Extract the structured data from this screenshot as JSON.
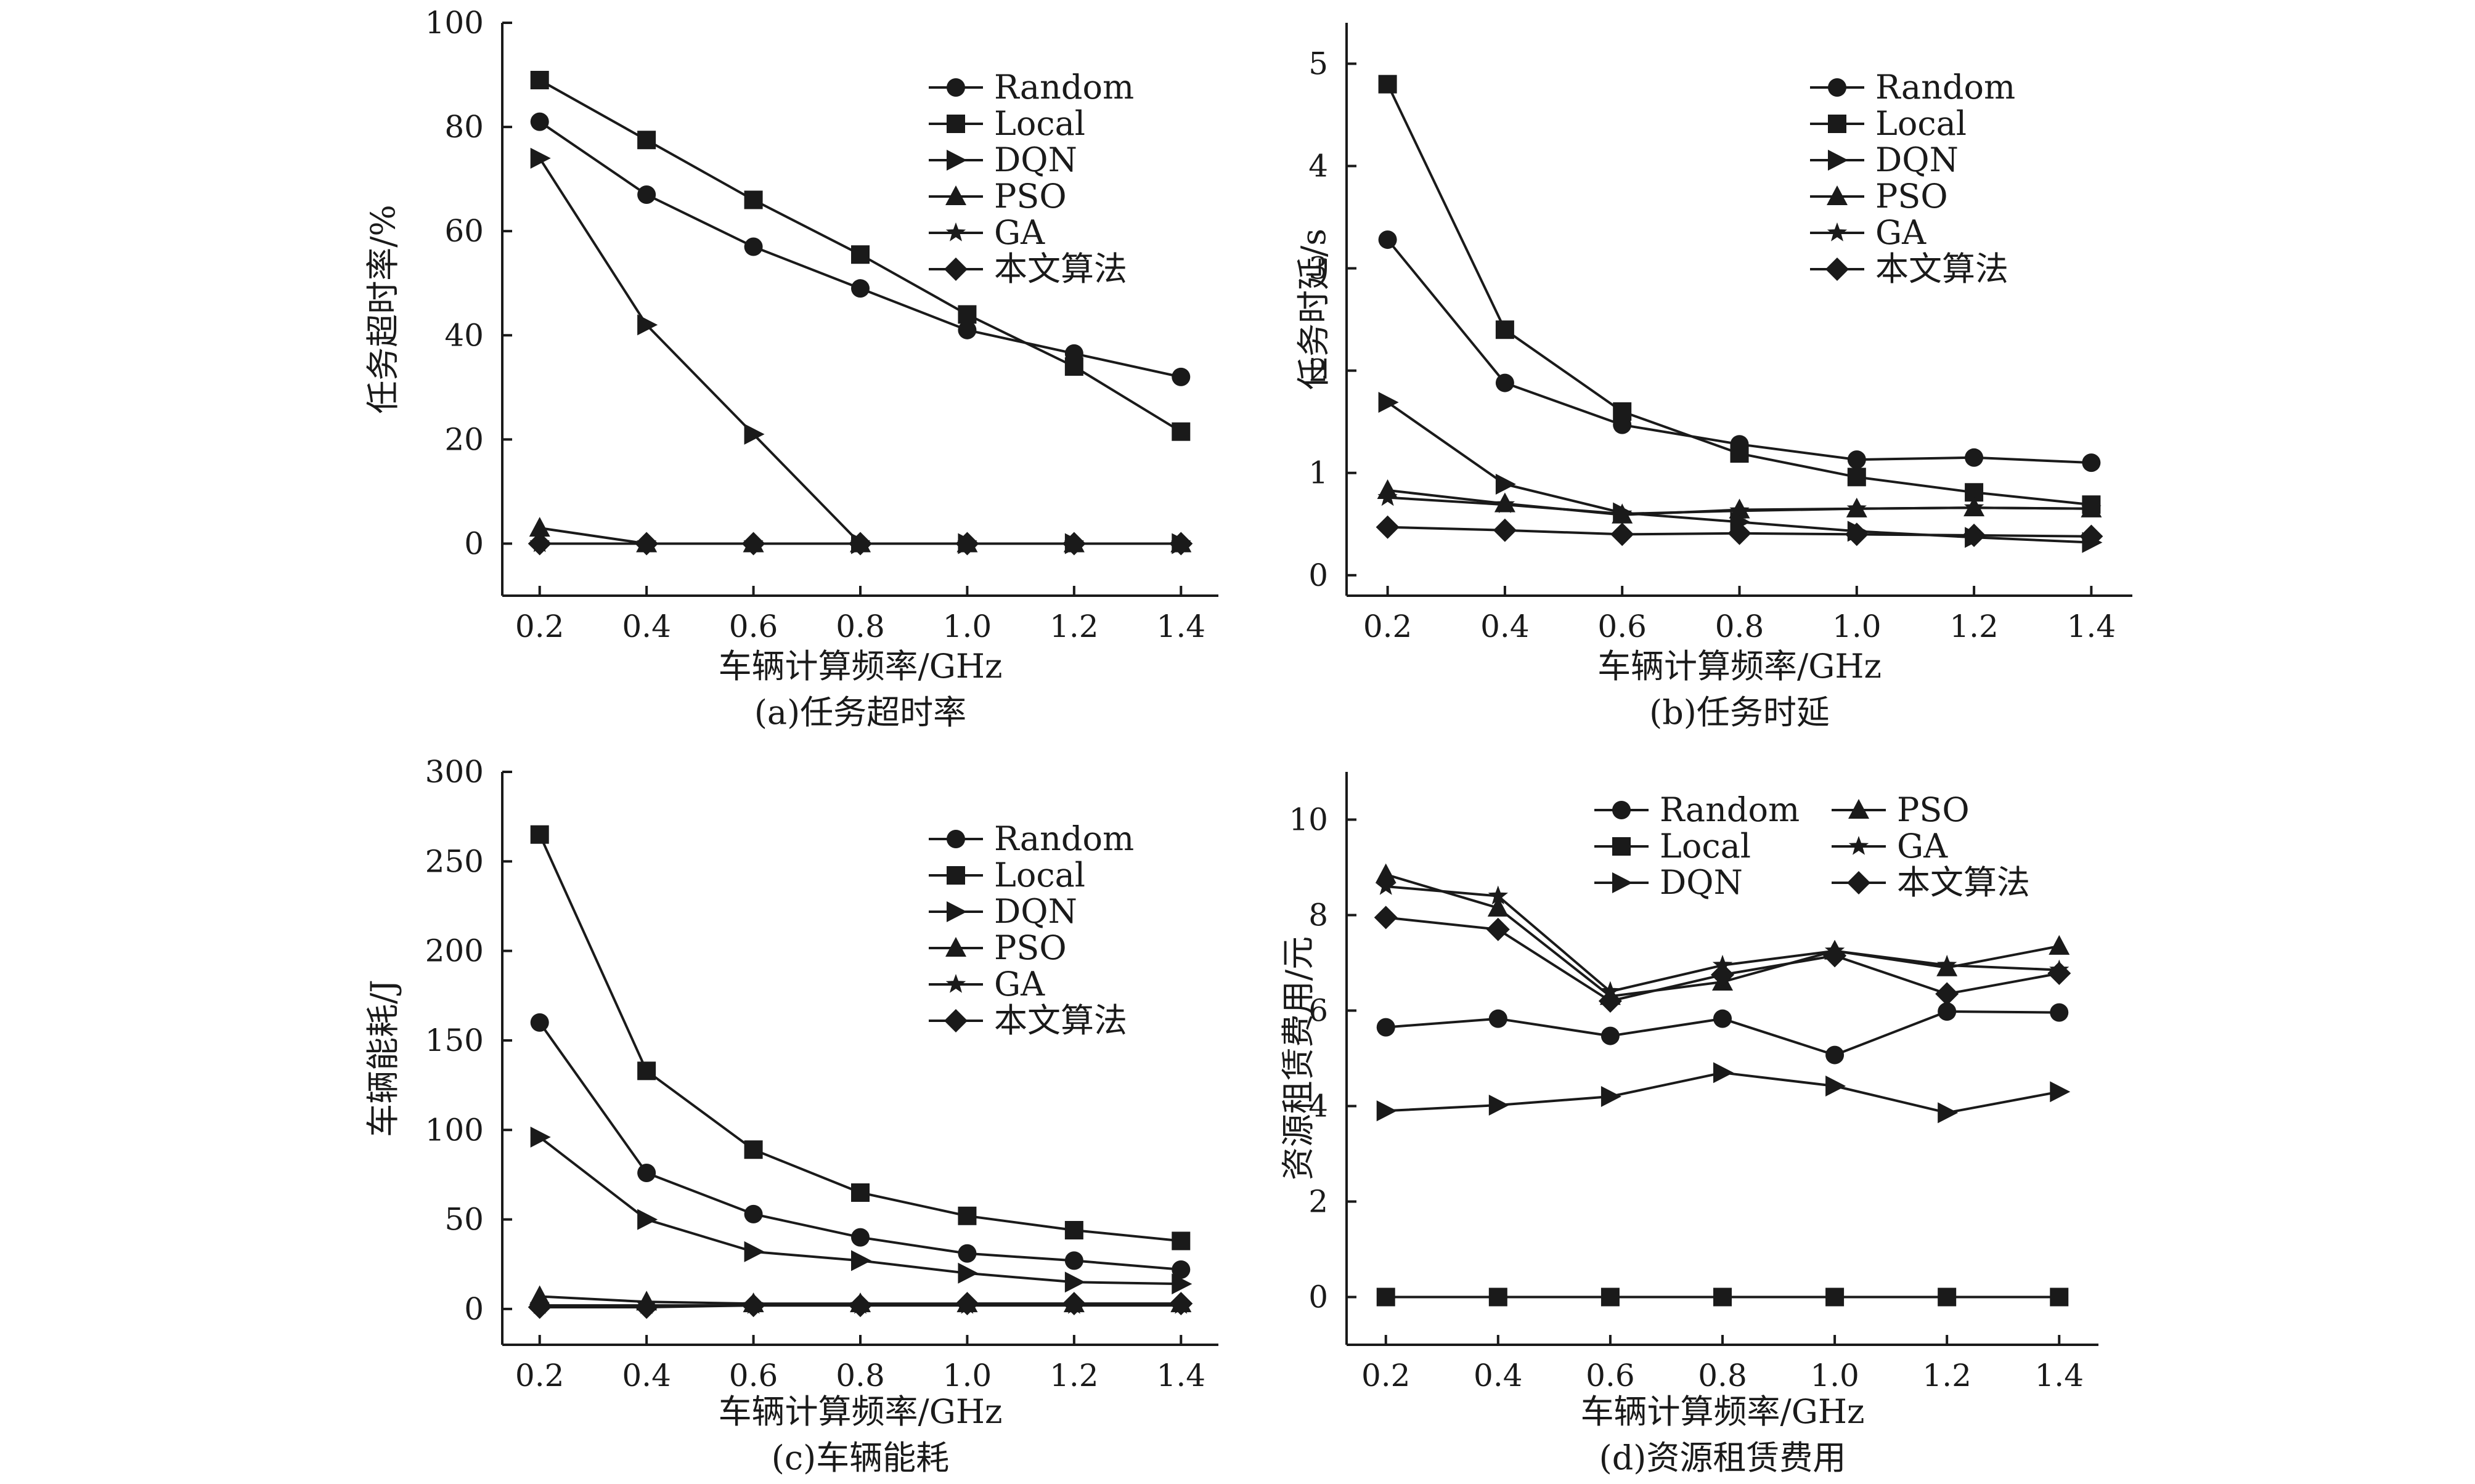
{
  "chart_data": [
    {
      "type": "line",
      "caption": "(a)任务超时率",
      "xlabel": "车辆计算频率/GHz",
      "ylabel": "任务超时率/%",
      "categories": [
        "0.2",
        "0.4",
        "0.6",
        "0.8",
        "1.0",
        "1.2",
        "1.4"
      ],
      "x": [
        0.2,
        0.4,
        0.6,
        0.8,
        1.0,
        1.2,
        1.4
      ],
      "xlim": [
        0.13,
        1.47
      ],
      "ylim": [
        -10,
        100
      ],
      "yticks": [
        "0",
        "20",
        "40",
        "60",
        "80",
        "100"
      ],
      "ytick_values": [
        0,
        20,
        40,
        60,
        80,
        100
      ],
      "legend": "top-right",
      "legend_columns": 1,
      "grid": false,
      "series": [
        {
          "name": "Random",
          "marker": "circle",
          "values": [
            81,
            67,
            57,
            49,
            41,
            36.5,
            32
          ]
        },
        {
          "name": "Local",
          "marker": "square",
          "values": [
            89,
            77.5,
            66,
            55.5,
            44,
            34,
            21.5
          ]
        },
        {
          "name": "DQN",
          "marker": "triangle-right",
          "values": [
            74,
            42,
            21,
            0,
            0,
            0,
            0
          ]
        },
        {
          "name": "PSO",
          "marker": "triangle-up",
          "values": [
            3,
            0,
            0,
            0,
            0,
            0,
            0
          ]
        },
        {
          "name": "GA",
          "marker": "star",
          "values": [
            0,
            0,
            0,
            0,
            0,
            0,
            0
          ]
        },
        {
          "name": "本文算法",
          "marker": "diamond",
          "values": [
            0,
            0,
            0,
            0,
            0,
            0,
            0
          ]
        }
      ]
    },
    {
      "type": "line",
      "caption": "(b)任务时延",
      "xlabel": "车辆计算频率/GHz",
      "ylabel": "任务时延/s",
      "categories": [
        "0.2",
        "0.4",
        "0.6",
        "0.8",
        "1.0",
        "1.2",
        "1.4"
      ],
      "x": [
        0.2,
        0.4,
        0.6,
        0.8,
        1.0,
        1.2,
        1.4
      ],
      "xlim": [
        0.13,
        1.47
      ],
      "ylim": [
        -0.2,
        5.4
      ],
      "yticks": [
        "0",
        "1",
        "2",
        "3",
        "4",
        "5"
      ],
      "ytick_values": [
        0,
        1,
        2,
        3,
        4,
        5
      ],
      "legend": "top-right",
      "legend_columns": 1,
      "grid": false,
      "series": [
        {
          "name": "Random",
          "marker": "circle",
          "values": [
            3.28,
            1.88,
            1.47,
            1.28,
            1.13,
            1.15,
            1.1
          ]
        },
        {
          "name": "Local",
          "marker": "square",
          "values": [
            4.8,
            2.4,
            1.6,
            1.19,
            0.96,
            0.81,
            0.69
          ]
        },
        {
          "name": "DQN",
          "marker": "triangle-right",
          "values": [
            1.69,
            0.89,
            0.61,
            0.52,
            0.43,
            0.37,
            0.32
          ]
        },
        {
          "name": "PSO",
          "marker": "triangle-up",
          "values": [
            0.83,
            0.7,
            0.59,
            0.64,
            0.65,
            0.66,
            0.65
          ]
        },
        {
          "name": "GA",
          "marker": "star",
          "values": [
            0.76,
            0.69,
            0.6,
            0.63,
            0.65,
            0.66,
            0.65
          ]
        },
        {
          "name": "本文算法",
          "marker": "diamond",
          "values": [
            0.47,
            0.44,
            0.4,
            0.41,
            0.4,
            0.39,
            0.38
          ]
        }
      ]
    },
    {
      "type": "line",
      "caption": "(c)车辆能耗",
      "xlabel": "车辆计算频率/GHz",
      "ylabel": "车辆能耗/J",
      "categories": [
        "0.2",
        "0.4",
        "0.6",
        "0.8",
        "1.0",
        "1.2",
        "1.4"
      ],
      "x": [
        0.2,
        0.4,
        0.6,
        0.8,
        1.0,
        1.2,
        1.4
      ],
      "xlim": [
        0.13,
        1.47
      ],
      "ylim": [
        -20,
        300
      ],
      "yticks": [
        "0",
        "50",
        "100",
        "150",
        "200",
        "250",
        "300"
      ],
      "ytick_values": [
        0,
        50,
        100,
        150,
        200,
        250,
        300
      ],
      "legend": "top-right",
      "legend_columns": 1,
      "grid": false,
      "series": [
        {
          "name": "Random",
          "marker": "circle",
          "values": [
            160,
            76,
            53,
            40,
            31,
            27,
            22
          ]
        },
        {
          "name": "Local",
          "marker": "square",
          "values": [
            265,
            133,
            89,
            65,
            52,
            44,
            38
          ]
        },
        {
          "name": "DQN",
          "marker": "triangle-right",
          "values": [
            96,
            50,
            32,
            27,
            20,
            15,
            14
          ]
        },
        {
          "name": "PSO",
          "marker": "triangle-up",
          "values": [
            7,
            4,
            3,
            3,
            3,
            3,
            3
          ]
        },
        {
          "name": "GA",
          "marker": "star",
          "values": [
            2,
            2,
            2,
            2,
            2,
            2,
            2
          ]
        },
        {
          "name": "本文算法",
          "marker": "diamond",
          "values": [
            1,
            1,
            2,
            2,
            3,
            3,
            3
          ]
        }
      ]
    },
    {
      "type": "line",
      "caption": "(d)资源租赁费用",
      "xlabel": "车辆计算频率/GHz",
      "ylabel": "资源租赁费用/元",
      "categories": [
        "0.2",
        "0.4",
        "0.6",
        "0.8",
        "1.0",
        "1.2",
        "1.4"
      ],
      "x": [
        0.2,
        0.4,
        0.6,
        0.8,
        1.0,
        1.2,
        1.4
      ],
      "xlim": [
        0.13,
        1.47
      ],
      "ylim": [
        -1,
        11
      ],
      "yticks": [
        "0",
        "2",
        "4",
        "6",
        "8",
        "10"
      ],
      "ytick_values": [
        0,
        2,
        4,
        6,
        8,
        10
      ],
      "legend": "top-right",
      "legend_columns": 2,
      "grid": false,
      "series": [
        {
          "name": "Random",
          "marker": "circle",
          "values": [
            5.65,
            5.83,
            5.47,
            5.83,
            5.07,
            5.98,
            5.96
          ]
        },
        {
          "name": "Local",
          "marker": "square",
          "values": [
            0,
            0,
            0,
            0,
            0,
            0,
            0
          ]
        },
        {
          "name": "DQN",
          "marker": "triangle-right",
          "values": [
            3.9,
            4.02,
            4.2,
            4.7,
            4.42,
            3.86,
            4.3
          ]
        },
        {
          "name": "PSO",
          "marker": "triangle-up",
          "values": [
            8.85,
            8.15,
            6.3,
            6.6,
            7.25,
            6.9,
            7.35
          ]
        },
        {
          "name": "GA",
          "marker": "star",
          "values": [
            8.6,
            8.4,
            6.4,
            6.95,
            7.25,
            6.95,
            6.85
          ]
        },
        {
          "name": "本文算法",
          "marker": "diamond",
          "values": [
            7.95,
            7.7,
            6.2,
            6.75,
            7.15,
            6.35,
            6.78
          ]
        }
      ]
    }
  ]
}
